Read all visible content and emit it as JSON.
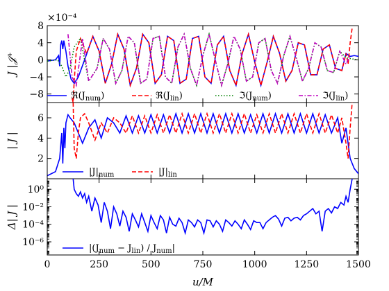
{
  "chart_data": [
    {
      "type": "line",
      "panel": "top",
      "ylabel": "J |𝒥⁺",
      "multiplier": "×10⁻⁴",
      "xlim": [
        0,
        1500
      ],
      "ylim": [
        -10,
        8
      ],
      "yticks": [
        -8,
        -4,
        0,
        4,
        8
      ],
      "yticklabels": [
        "−8",
        "−4",
        "0",
        "4",
        "8"
      ],
      "legend_placement": "bottom",
      "series": [
        {
          "name": "ℜ(J_num)",
          "label_html": "ℜ(J<tspan font-size='10' dy='3'>num</tspan><tspan dy='-3'>)</tspan>",
          "color": "#0000ff",
          "style": "solid",
          "x": [
            0,
            40,
            55,
            60,
            65,
            70,
            75,
            80,
            90,
            100,
            115,
            130,
            150,
            180,
            220,
            250,
            280,
            310,
            340,
            370,
            400,
            430,
            460,
            490,
            520,
            550,
            580,
            610,
            640,
            670,
            700,
            730,
            760,
            790,
            820,
            850,
            880,
            910,
            940,
            970,
            1000,
            1030,
            1060,
            1090,
            1120,
            1150,
            1180,
            1210,
            1240,
            1270,
            1300,
            1330,
            1360,
            1390,
            1420,
            1440,
            1460,
            1480,
            1500
          ],
          "y": [
            -0.3,
            0.0,
            1.0,
            -1.5,
            3.5,
            4.5,
            2.5,
            4.5,
            2.0,
            -1.5,
            -4.5,
            -5.5,
            -4.0,
            0.0,
            5.5,
            2.0,
            -5.5,
            -1.0,
            6.0,
            2.5,
            -6.0,
            -2.0,
            6.0,
            4.0,
            -5.5,
            -3.5,
            5.5,
            4.5,
            -5.5,
            -4.5,
            5.0,
            5.5,
            -4.0,
            -5.5,
            3.5,
            5.5,
            -2.5,
            -6.0,
            1.5,
            6.0,
            -0.5,
            -6.0,
            -0.5,
            5.5,
            1.5,
            -5.0,
            -2.5,
            4.0,
            3.5,
            -3.5,
            -3.5,
            2.5,
            3.5,
            -2.0,
            -2.5,
            1.5,
            0.8,
            1.0,
            0.8
          ]
        },
        {
          "name": "ℜ(J_lin)",
          "label_html": "ℜ(J<tspan font-size='10' dy='3'>lin</tspan><tspan dy='-3'>)</tspan>",
          "color": "#ff0000",
          "style": "dash",
          "x": [
            120,
            125,
            130,
            140,
            160,
            190,
            220,
            250,
            280,
            310,
            340,
            370,
            400,
            430,
            460,
            490,
            520,
            550,
            580,
            610,
            640,
            670,
            700,
            730,
            760,
            790,
            820,
            850,
            880,
            910,
            940,
            970,
            1000,
            1030,
            1060,
            1090,
            1120,
            1150,
            1180,
            1210,
            1240,
            1270,
            1300,
            1330,
            1360,
            1390,
            1420,
            1440,
            1450,
            1460,
            1470
          ],
          "y": [
            -9.0,
            -10.0,
            -5.0,
            2.0,
            5.0,
            1.5,
            5.5,
            2.0,
            -5.5,
            -1.0,
            6.0,
            2.5,
            -6.0,
            -2.0,
            6.0,
            4.0,
            -5.5,
            -3.5,
            5.5,
            4.5,
            -5.5,
            -4.5,
            5.0,
            5.5,
            -4.0,
            -5.5,
            3.5,
            5.5,
            -2.5,
            -6.0,
            1.5,
            6.0,
            -0.5,
            -6.0,
            -0.5,
            5.5,
            1.5,
            -5.0,
            -2.5,
            4.0,
            3.5,
            -3.5,
            -3.5,
            2.5,
            3.5,
            -2.0,
            -2.5,
            1.5,
            -1.0,
            4.0,
            7.5
          ]
        },
        {
          "name": "ℑ(J_num)",
          "label_html": "ℑ(J<tspan font-size='10' dy='3'>num</tspan><tspan dy='-3'>)</tspan>",
          "color": "#008000",
          "style": "dot",
          "x": [
            0,
            50,
            70,
            90,
            110,
            130,
            160,
            200,
            240,
            270,
            300,
            330,
            360,
            390,
            420,
            450,
            480,
            510,
            540,
            570,
            600,
            630,
            660,
            690,
            720,
            750,
            780,
            810,
            840,
            870,
            900,
            930,
            960,
            990,
            1020,
            1050,
            1080,
            1110,
            1140,
            1170,
            1200,
            1230,
            1260,
            1290,
            1320,
            1350,
            1380,
            1410,
            1440,
            1470,
            1500
          ],
          "y": [
            -0.3,
            0.0,
            -1.5,
            -4.0,
            -2.0,
            3.0,
            5.0,
            -5.0,
            -2.0,
            5.0,
            2.5,
            -5.5,
            -2.5,
            5.5,
            4.0,
            -5.5,
            -4.5,
            5.0,
            5.5,
            -4.0,
            -5.5,
            3.0,
            6.0,
            -2.0,
            -6.0,
            1.0,
            6.0,
            0.0,
            -6.0,
            -1.0,
            5.5,
            2.5,
            -5.0,
            -4.0,
            4.0,
            5.0,
            -2.5,
            -5.5,
            1.0,
            5.5,
            0.5,
            -5.0,
            -2.0,
            4.0,
            3.0,
            -2.5,
            -3.0,
            2.0,
            0.5,
            0.2,
            0.0
          ]
        },
        {
          "name": "ℑ(J_lin)",
          "label_html": "ℑ(J<tspan font-size='10' dy='3'>lin</tspan><tspan dy='-3'>)</tspan>",
          "color": "#bf00bf",
          "style": "dashdot",
          "x": [
            100,
            120,
            140,
            170,
            200,
            240,
            270,
            300,
            330,
            360,
            390,
            420,
            450,
            480,
            510,
            540,
            570,
            600,
            630,
            660,
            690,
            720,
            750,
            780,
            810,
            840,
            870,
            900,
            930,
            960,
            990,
            1020,
            1050,
            1080,
            1110,
            1140,
            1170,
            1200,
            1230,
            1260,
            1290,
            1320,
            1350,
            1380,
            1410,
            1440,
            1460
          ],
          "y": [
            6.0,
            -4.0,
            -6.0,
            5.0,
            -5.0,
            -2.0,
            5.0,
            2.5,
            -5.5,
            -2.5,
            5.5,
            4.0,
            -5.5,
            -4.5,
            5.0,
            5.5,
            -4.0,
            -5.5,
            3.0,
            6.0,
            -2.0,
            -6.0,
            1.0,
            6.0,
            0.0,
            -6.0,
            -1.0,
            5.5,
            2.5,
            -5.0,
            -4.0,
            4.0,
            5.0,
            -2.5,
            -5.5,
            1.0,
            5.5,
            0.5,
            -5.0,
            -2.0,
            4.0,
            3.0,
            -2.5,
            -3.0,
            2.0,
            -1.0,
            1.0
          ]
        }
      ]
    },
    {
      "type": "line",
      "panel": "middle",
      "ylabel": "| J |",
      "xlim": [
        0,
        1500
      ],
      "ylim": [
        0,
        7.5
      ],
      "yticks": [
        2,
        4,
        6
      ],
      "yticklabels": [
        "2",
        "4",
        "6"
      ],
      "legend_placement": "bottom-left",
      "series": [
        {
          "name": "|J|_num",
          "label_html": "|J|<tspan font-size='10' dy='3'>num</tspan>",
          "color": "#0000ff",
          "style": "solid",
          "x": [
            0,
            40,
            60,
            70,
            75,
            80,
            85,
            90,
            100,
            110,
            130,
            150,
            170,
            200,
            230,
            260,
            290,
            320,
            350,
            380,
            410,
            440,
            470,
            500,
            530,
            560,
            590,
            620,
            650,
            680,
            710,
            740,
            770,
            800,
            830,
            860,
            890,
            920,
            950,
            980,
            1010,
            1040,
            1070,
            1100,
            1130,
            1160,
            1190,
            1220,
            1250,
            1280,
            1310,
            1340,
            1370,
            1400,
            1420,
            1440,
            1460,
            1480,
            1500
          ],
          "y": [
            0.3,
            0.7,
            2.0,
            4.5,
            1.5,
            5.0,
            3.0,
            5.5,
            6.3,
            6.0,
            5.5,
            4.5,
            3.5,
            5.0,
            5.8,
            4.0,
            6.0,
            5.5,
            4.5,
            6.2,
            4.5,
            6.2,
            4.5,
            6.3,
            4.5,
            6.3,
            4.5,
            6.4,
            4.5,
            6.4,
            4.5,
            6.4,
            4.5,
            6.4,
            4.5,
            6.4,
            4.5,
            6.4,
            4.5,
            6.3,
            4.5,
            6.4,
            4.5,
            6.4,
            4.5,
            6.4,
            4.5,
            6.4,
            4.5,
            6.4,
            4.5,
            6.3,
            4.5,
            6.0,
            3.5,
            5.0,
            2.0,
            1.0,
            0.5
          ]
        },
        {
          "name": "|J|_lin",
          "label_html": "|J|<tspan font-size='10' dy='3'>lin</tspan>",
          "color": "#ff0000",
          "style": "dash",
          "x": [
            125,
            130,
            140,
            150,
            160,
            180,
            200,
            230,
            260,
            290,
            320,
            350,
            380,
            410,
            440,
            470,
            500,
            530,
            560,
            590,
            620,
            650,
            680,
            710,
            740,
            770,
            800,
            830,
            860,
            890,
            920,
            950,
            980,
            1010,
            1040,
            1070,
            1100,
            1130,
            1160,
            1190,
            1220,
            1250,
            1280,
            1310,
            1340,
            1370,
            1400,
            1420,
            1440,
            1450,
            1460,
            1470
          ],
          "y": [
            7.5,
            3.0,
            2.0,
            4.5,
            6.0,
            6.4,
            5.5,
            3.8,
            5.5,
            4.5,
            6.0,
            5.5,
            4.5,
            6.2,
            4.5,
            6.2,
            4.5,
            6.3,
            4.5,
            6.3,
            4.5,
            6.4,
            4.5,
            6.4,
            4.5,
            6.4,
            4.5,
            6.4,
            4.5,
            6.4,
            4.5,
            6.4,
            4.5,
            6.3,
            4.5,
            6.4,
            4.5,
            6.4,
            4.5,
            6.4,
            4.5,
            6.4,
            4.5,
            6.4,
            4.5,
            6.3,
            4.5,
            6.0,
            3.5,
            2.0,
            5.0,
            7.5
          ]
        }
      ]
    },
    {
      "type": "line",
      "panel": "bottom",
      "ylabel": "Δ| J |",
      "log_y": true,
      "xlabel": "u/M",
      "xlim": [
        0,
        1500
      ],
      "ylim_log10": [
        -7.5,
        1.2
      ],
      "yticks_log10": [
        -6,
        -4,
        -2,
        0
      ],
      "yticklabels": [
        "10⁻⁶",
        "10⁻⁴",
        "10⁻²",
        "10⁰"
      ],
      "xticks": [
        0,
        250,
        500,
        750,
        1000,
        1250,
        1500
      ],
      "xticklabels": [
        "0",
        "250",
        "500",
        "750",
        "1000",
        "1250",
        "1500"
      ],
      "legend_placement": "bottom-left",
      "series": [
        {
          "name": "|(J_num − J_lin) / J_num|",
          "label_html": "|(J<tspan font-size='10' dy='3'>num</tspan><tspan dy='-3'> − J</tspan><tspan font-size='10' dy='3'>lin</tspan><tspan dy='-3'>) / J</tspan><tspan font-size='10' dy='3'>num</tspan><tspan dy='-3'>|</tspan>",
          "color": "#0000ff",
          "style": "solid",
          "x": [
            125,
            130,
            140,
            150,
            160,
            170,
            180,
            190,
            200,
            215,
            230,
            245,
            260,
            275,
            290,
            305,
            320,
            335,
            350,
            365,
            380,
            395,
            410,
            425,
            440,
            455,
            470,
            485,
            500,
            515,
            530,
            545,
            560,
            575,
            590,
            605,
            620,
            635,
            650,
            665,
            680,
            695,
            710,
            725,
            740,
            755,
            770,
            785,
            800,
            815,
            830,
            845,
            860,
            875,
            890,
            905,
            920,
            935,
            950,
            965,
            980,
            995,
            1010,
            1025,
            1040,
            1055,
            1070,
            1085,
            1100,
            1115,
            1130,
            1145,
            1160,
            1175,
            1190,
            1205,
            1220,
            1235,
            1250,
            1265,
            1280,
            1295,
            1310,
            1325,
            1340,
            1355,
            1370,
            1385,
            1400,
            1415,
            1430,
            1440,
            1450,
            1460,
            1470
          ],
          "y": [
            1.2,
            0.0,
            -0.5,
            -0.8,
            -0.3,
            -1.0,
            -0.5,
            -1.5,
            -0.8,
            -2.5,
            -1.0,
            -1.8,
            -3.8,
            -1.5,
            -2.5,
            -4.5,
            -2.0,
            -2.8,
            -4.2,
            -2.5,
            -3.2,
            -4.8,
            -2.8,
            -3.5,
            -4.3,
            -2.8,
            -3.8,
            -4.8,
            -3.0,
            -3.8,
            -4.5,
            -3.0,
            -3.5,
            -5.0,
            -3.2,
            -4.0,
            -4.2,
            -3.3,
            -3.8,
            -5.0,
            -3.5,
            -3.8,
            -4.3,
            -3.5,
            -3.8,
            -5.0,
            -3.5,
            -3.6,
            -4.3,
            -3.6,
            -4.0,
            -4.8,
            -3.5,
            -3.8,
            -4.2,
            -3.6,
            -4.0,
            -4.5,
            -3.5,
            -4.0,
            -4.6,
            -3.6,
            -3.8,
            -3.8,
            -4.5,
            -3.8,
            -3.5,
            -3.2,
            -3.0,
            -3.4,
            -4.2,
            -3.3,
            -3.2,
            -3.6,
            -3.3,
            -3.2,
            -3.5,
            -3.0,
            -2.8,
            -2.5,
            -2.2,
            -2.8,
            -2.5,
            -4.8,
            -2.5,
            -2.2,
            -2.7,
            -2.0,
            -2.2,
            -1.5,
            -1.8,
            -0.8,
            -1.5,
            0.0,
            1.2
          ]
        }
      ]
    }
  ],
  "colors": {
    "num": "#0000ff",
    "lin": "#ff0000",
    "imag_num": "#008000",
    "imag_lin": "#bf00bf"
  }
}
